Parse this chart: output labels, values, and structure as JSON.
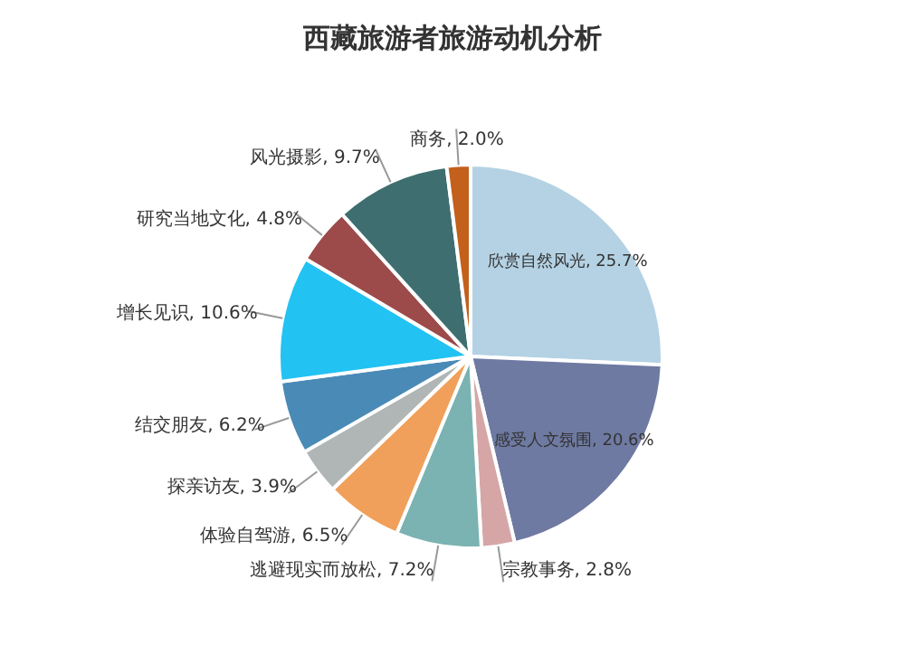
{
  "chart_data": {
    "type": "pie",
    "title": "西藏旅游者旅游动机分析",
    "categories": [
      "欣赏自然风光",
      "感受人文氛围",
      "宗教事务",
      "逃避现实而放松",
      "体验自驾游",
      "探亲访友",
      "结交朋友",
      "增长见识",
      "研究当地文化",
      "风光摄影",
      "商务"
    ],
    "values": [
      25.7,
      20.6,
      2.8,
      7.2,
      6.5,
      3.9,
      6.2,
      10.6,
      4.8,
      9.7,
      2.0
    ],
    "value_labels": [
      "25.7%",
      "20.6%",
      "2.8%",
      "7.2%",
      "6.5%",
      "3.9%",
      "6.2%",
      "10.6%",
      "4.8%",
      "9.7%",
      "2.0%"
    ],
    "colors": [
      "#b4d2e4",
      "#6e7aa2",
      "#d6a6a6",
      "#7bb2b2",
      "#f0a05a",
      "#b0b6b6",
      "#4a8ab6",
      "#22c2f2",
      "#9c4a4a",
      "#3e6e70",
      "#c2601c"
    ],
    "legend": false
  }
}
